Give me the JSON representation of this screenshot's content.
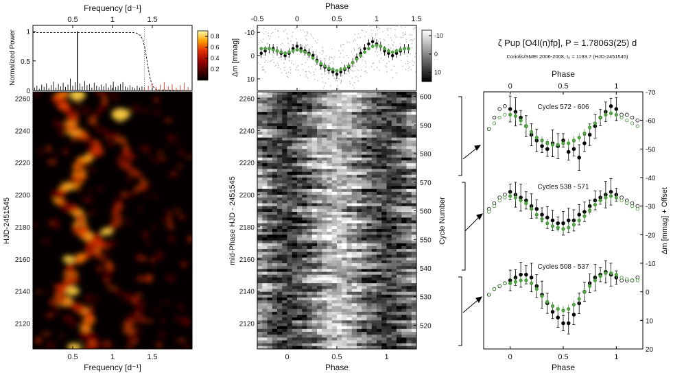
{
  "chart_data": [
    {
      "type": "line",
      "panel": "periodogram",
      "title": "",
      "xlabel_top": "Frequency [d⁻¹]",
      "ylabel": "Normalized Power",
      "xlim": [
        0,
        2.0
      ],
      "ylim": [
        0,
        1.1
      ],
      "xticks": [
        0.5,
        1,
        1.5
      ],
      "xtick_labels": [
        "0.5",
        "1",
        "1.5"
      ],
      "yticks": [
        0,
        0.5,
        1
      ],
      "ytick_labels": [
        "0",
        "0.5",
        "1"
      ],
      "peak_frequency": 0.56,
      "peak_power": 1.0,
      "window_cutoff": 1.4,
      "series": [
        {
          "name": "power",
          "x": [
            0.02,
            0.05,
            0.08,
            0.11,
            0.14,
            0.17,
            0.2,
            0.23,
            0.26,
            0.29,
            0.32,
            0.35,
            0.38,
            0.41,
            0.44,
            0.47,
            0.5,
            0.53,
            0.56,
            0.59,
            0.62,
            0.65,
            0.68,
            0.71,
            0.74,
            0.77,
            0.8,
            0.83,
            0.86,
            0.89,
            0.92,
            0.95,
            0.98,
            1.01,
            1.04,
            1.07,
            1.1,
            1.13,
            1.16,
            1.19,
            1.22,
            1.25,
            1.28,
            1.31,
            1.34,
            1.37,
            1.4
          ],
          "values": [
            0.05,
            0.08,
            0.03,
            0.1,
            0.06,
            0.12,
            0.04,
            0.09,
            0.15,
            0.05,
            0.11,
            0.07,
            0.13,
            0.06,
            0.1,
            0.2,
            0.08,
            0.14,
            1.0,
            0.12,
            0.07,
            0.16,
            0.09,
            0.11,
            0.05,
            0.13,
            0.08,
            0.06,
            0.1,
            0.07,
            0.12,
            0.05,
            0.09,
            0.15,
            0.06,
            0.08,
            0.11,
            0.14,
            0.07,
            0.05,
            0.09,
            0.06,
            0.04,
            0.08,
            0.05,
            0.07,
            0.03
          ]
        },
        {
          "name": "residual",
          "x": [
            1.4,
            1.45,
            1.5,
            1.55,
            1.6,
            1.65,
            1.7,
            1.75,
            1.8,
            1.85,
            1.9,
            1.95
          ],
          "values": [
            0.05,
            0.08,
            0.12,
            0.06,
            0.1,
            0.14,
            0.07,
            0.11,
            0.05,
            0.09,
            0.13,
            0.06
          ]
        },
        {
          "name": "window",
          "x": [
            0,
            0.5,
            1.0,
            1.25,
            1.3,
            1.35,
            1.38,
            1.41,
            1.44,
            1.47,
            1.5,
            1.55,
            2.0
          ],
          "values": [
            0.98,
            0.98,
            0.98,
            0.98,
            0.97,
            0.93,
            0.86,
            0.7,
            0.45,
            0.22,
            0.08,
            0.01,
            0
          ]
        }
      ]
    },
    {
      "type": "heatmap",
      "panel": "time-frequency",
      "xlabel": "Frequency [d⁻¹]",
      "ylabel": "HJD-2451545",
      "xlim": [
        0,
        2.0
      ],
      "ylim": [
        2104,
        2264
      ],
      "xticks": [
        0.5,
        1,
        1.5
      ],
      "xtick_labels": [
        "0.5",
        "1",
        "1.5"
      ],
      "yticks": [
        2120,
        2140,
        2160,
        2180,
        2200,
        2220,
        2240,
        2260
      ],
      "ytick_labels": [
        "2120",
        "2140",
        "2160",
        "2180",
        "2200",
        "2220",
        "2240",
        "2260"
      ],
      "colorbar_ticks": [
        0.2,
        0.4,
        0.6,
        0.8
      ],
      "colorbar_tick_labels": [
        "0.2",
        "0.4",
        "0.6",
        "0.8"
      ],
      "colorbar_range": [
        0,
        0.9
      ]
    },
    {
      "type": "scatter",
      "panel": "phased-lightcurve",
      "xlabel_top": "Phase",
      "ylabel": "Δm [mmag]",
      "xlim": [
        -0.5,
        1.5
      ],
      "ylim": [
        15,
        -13
      ],
      "xticks": [
        -0.5,
        0,
        0.5,
        1,
        1.5
      ],
      "xtick_labels": [
        "-0.5",
        "0",
        "0.5",
        "1",
        "1.5"
      ],
      "yticks": [
        -10,
        0,
        10
      ],
      "ytick_labels": [
        "-10",
        "0",
        "10"
      ],
      "series": [
        {
          "name": "binned",
          "x": [
            -0.45,
            -0.4,
            -0.35,
            -0.3,
            -0.25,
            -0.2,
            -0.15,
            -0.1,
            -0.05,
            0,
            0.05,
            0.1,
            0.15,
            0.2,
            0.25,
            0.3,
            0.35,
            0.4,
            0.45,
            0.5,
            0.55,
            0.6,
            0.65,
            0.7,
            0.75,
            0.8,
            0.85,
            0.9,
            0.95,
            1.0,
            1.05,
            1.1,
            1.15,
            1.2,
            1.25,
            1.3,
            1.35,
            1.4
          ],
          "values": [
            -1,
            -2,
            -3,
            -3,
            -2,
            -1,
            0,
            -1,
            -3,
            -4,
            -3,
            -2,
            -1,
            0,
            2,
            4,
            5,
            6,
            7,
            8,
            7,
            6,
            5,
            3,
            1,
            -1,
            -3,
            -5,
            -6,
            -5,
            -4,
            -2,
            -1,
            0,
            -1,
            -2,
            -3,
            -3
          ]
        },
        {
          "name": "model",
          "x": [
            -0.45,
            -0.4,
            -0.35,
            -0.3,
            -0.25,
            -0.2,
            -0.15,
            -0.1,
            -0.05,
            0,
            0.05,
            0.1,
            0.15,
            0.2,
            0.25,
            0.3,
            0.35,
            0.4,
            0.45,
            0.5,
            0.55,
            0.6,
            0.65,
            0.7,
            0.75,
            0.8,
            0.85,
            0.9,
            0.95,
            1.0,
            1.05,
            1.1,
            1.15,
            1.2,
            1.25,
            1.3,
            1.35,
            1.4
          ],
          "values": [
            -3,
            -3,
            -3,
            -2.5,
            -2,
            -1.5,
            -1,
            -1.5,
            -2,
            -2.5,
            -2,
            -1.5,
            -0.5,
            1,
            2.5,
            3.5,
            4.5,
            5.5,
            6,
            6.5,
            6,
            5.5,
            4.5,
            3,
            1.5,
            0,
            -1.5,
            -3,
            -4,
            -4.5,
            -4,
            -3,
            -2,
            -1.5,
            -2,
            -2.5,
            -3,
            -3
          ]
        }
      ]
    },
    {
      "type": "heatmap",
      "panel": "phase-time",
      "xlabel": "Phase",
      "ylabel": "mid-Phase HJD - 2451545",
      "ylabel_right": "Cycle Number",
      "xlim": [
        -0.3,
        1.3
      ],
      "ylim": [
        2104,
        2264
      ],
      "xticks": [
        0,
        0.5,
        1
      ],
      "xtick_labels": [
        "0",
        "0.5",
        "1"
      ],
      "yticks": [
        2120,
        2140,
        2160,
        2180,
        2200,
        2220,
        2240,
        2260
      ],
      "ytick_labels": [
        "2120",
        "2140",
        "2160",
        "2180",
        "2200",
        "2220",
        "2240",
        "2260"
      ],
      "cycle_ticks": [
        520,
        530,
        540,
        550,
        560,
        570,
        580,
        590,
        600
      ],
      "cycle_tick_labels": [
        "520",
        "530",
        "540",
        "550",
        "560",
        "570",
        "580",
        "590",
        "600"
      ],
      "colorbar_ticks": [
        -10,
        0,
        10
      ],
      "colorbar_tick_labels": [
        "-10",
        "0",
        "10"
      ],
      "colorbar_range": [
        15,
        -13
      ]
    },
    {
      "type": "scatter",
      "panel": "cycle-lightcurves",
      "title": "ζ Pup [O4I(n)fp], P = 1.78063(25) d",
      "subtitle": "Coriolis/SMEI 2006-2008, t₀ = 1193.7 (HJD-2451545)",
      "xlabel": "Phase",
      "xlabel_top": "Phase",
      "ylabel_right": "Δm [mmag] + Offset",
      "xlim": [
        -0.25,
        1.25
      ],
      "ylim": [
        20,
        -70
      ],
      "xticks": [
        0,
        0.5,
        1
      ],
      "xtick_labels": [
        "0",
        "0.5",
        "1"
      ],
      "yticks": [
        20,
        10,
        0,
        -10,
        -20,
        -30,
        -40,
        -50,
        -60,
        -70
      ],
      "ytick_labels": [
        "20",
        "10",
        "0",
        "-10",
        "-20",
        "-30",
        "-40",
        "-50",
        "-60",
        "-70"
      ],
      "series": [
        {
          "name": "Cycles 572 - 606",
          "x": [
            -0.2,
            -0.15,
            -0.1,
            -0.05,
            0,
            0.05,
            0.1,
            0.15,
            0.2,
            0.25,
            0.3,
            0.35,
            0.4,
            0.45,
            0.5,
            0.55,
            0.6,
            0.65,
            0.7,
            0.75,
            0.8,
            0.85,
            0.9,
            0.95,
            1.0,
            1.05,
            1.1,
            1.15,
            1.2
          ],
          "values": [
            -57,
            -61,
            -64,
            -65,
            -64,
            -63,
            -61,
            -58,
            -55,
            -53,
            -51,
            -50,
            -52,
            -51,
            -53,
            -49,
            -50,
            -47,
            -52,
            -55,
            -58,
            -61,
            -63,
            -65,
            -64,
            -62,
            -62,
            -61,
            -60
          ],
          "model": [
            -57,
            -59,
            -61,
            -62,
            -62,
            -61.5,
            -60,
            -58,
            -56,
            -54,
            -53,
            -52,
            -51.5,
            -51.5,
            -52,
            -52,
            -53,
            -54,
            -55.5,
            -57.5,
            -59,
            -61,
            -62,
            -62.5,
            -62,
            -61,
            -60,
            -59,
            -58
          ]
        },
        {
          "name": "Cycles 538 - 571",
          "x": [
            -0.2,
            -0.15,
            -0.1,
            -0.05,
            0,
            0.05,
            0.1,
            0.15,
            0.2,
            0.25,
            0.3,
            0.35,
            0.4,
            0.45,
            0.5,
            0.55,
            0.6,
            0.65,
            0.7,
            0.75,
            0.8,
            0.85,
            0.9,
            0.95,
            1.0,
            1.05,
            1.1,
            1.15,
            1.2
          ],
          "values": [
            -29,
            -31,
            -33,
            -34,
            -35,
            -34,
            -33,
            -32,
            -30,
            -29,
            -27,
            -26,
            -25,
            -24,
            -24,
            -25,
            -25,
            -27,
            -28,
            -30,
            -32,
            -33,
            -34,
            -35,
            -34,
            -33,
            -32,
            -31,
            -30
          ],
          "model": [
            -28,
            -30,
            -32,
            -33,
            -33.5,
            -33,
            -32,
            -31,
            -29,
            -27,
            -25.5,
            -24,
            -23,
            -22.5,
            -22,
            -22.5,
            -23.5,
            -25,
            -26.5,
            -28.5,
            -30.5,
            -32,
            -33,
            -33.5,
            -33,
            -32,
            -31,
            -30,
            -29
          ]
        },
        {
          "name": "Cycles 508 - 537",
          "x": [
            -0.2,
            -0.15,
            -0.1,
            -0.05,
            0,
            0.05,
            0.1,
            0.15,
            0.2,
            0.25,
            0.3,
            0.35,
            0.4,
            0.45,
            0.5,
            0.55,
            0.6,
            0.65,
            0.7,
            0.75,
            0.8,
            0.85,
            0.9,
            0.95,
            1.0,
            1.05,
            1.1,
            1.15,
            1.2
          ],
          "values": [
            1,
            -1,
            -2,
            -3,
            -4,
            -5,
            -6,
            -6,
            -5,
            -2,
            1,
            4,
            7,
            9,
            11,
            11,
            8,
            4,
            0,
            -3,
            -5,
            -6,
            -7,
            -6,
            -5,
            -4,
            -4,
            -4,
            -5
          ],
          "model": [
            1,
            -1,
            -2,
            -3,
            -3,
            -3.5,
            -4,
            -4,
            -3,
            -1,
            1.5,
            3.5,
            5,
            6,
            6.5,
            6,
            4.5,
            2.5,
            0,
            -2,
            -4,
            -5.5,
            -6.5,
            -6.5,
            -6,
            -5,
            -4.5,
            -4,
            -4
          ]
        }
      ]
    }
  ]
}
